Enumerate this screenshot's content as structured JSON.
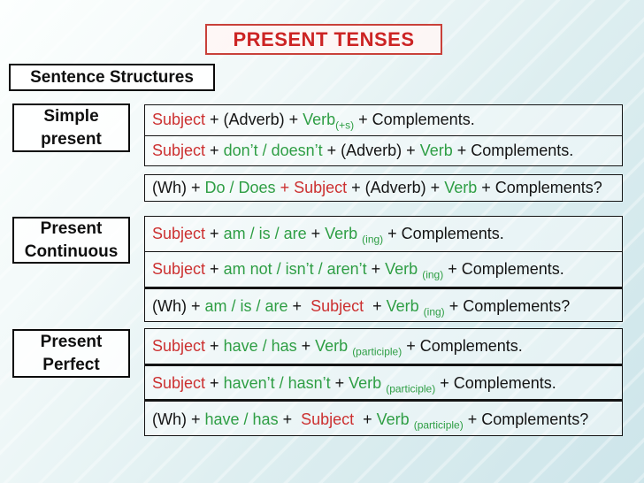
{
  "colors": {
    "red": "#cc3030",
    "green": "#2e9e44",
    "black": "#141414",
    "title_red": "#cc2424"
  },
  "title": "PRESENT TENSES",
  "subtitle": "Sentence Structures",
  "sections": [
    {
      "label": "Simple present",
      "rows": [
        {
          "segments": [
            {
              "t": "Subject",
              "c": "red"
            },
            {
              "t": " + (Adverb) + "
            },
            {
              "t": "Verb",
              "c": "green"
            },
            {
              "t": "(+s)",
              "c": "green",
              "sub": true
            },
            {
              "t": " + Complements."
            }
          ]
        },
        {
          "segments": [
            {
              "t": "Subject",
              "c": "red"
            },
            {
              "t": " + "
            },
            {
              "t": "don’t / doesn’t",
              "c": "green"
            },
            {
              "t": " + (Adverb) + "
            },
            {
              "t": "Verb",
              "c": "green"
            },
            {
              "t": " + Complements."
            }
          ]
        },
        {
          "segments": [
            {
              "t": "(Wh) + "
            },
            {
              "t": "Do / Does ",
              "c": "green"
            },
            {
              "t": "+ Subject",
              "c": "red"
            },
            {
              "t": " + (Adverb) + "
            },
            {
              "t": "Verb",
              "c": "green"
            },
            {
              "t": " + Complements?"
            }
          ]
        }
      ]
    },
    {
      "label": "Present Continuous",
      "rows": [
        {
          "segments": [
            {
              "t": "Subject",
              "c": "red"
            },
            {
              "t": " + "
            },
            {
              "t": "am / is / are",
              "c": "green"
            },
            {
              "t": " + "
            },
            {
              "t": "Verb",
              "c": "green"
            },
            {
              "t": " "
            },
            {
              "t": "(ing)",
              "c": "green",
              "sub": true
            },
            {
              "t": " + Complements."
            }
          ]
        },
        {
          "segments": [
            {
              "t": "Subject",
              "c": "red"
            },
            {
              "t": " + "
            },
            {
              "t": "am not / isn’t / aren’t",
              "c": "green"
            },
            {
              "t": " + "
            },
            {
              "t": "Verb",
              "c": "green"
            },
            {
              "t": " "
            },
            {
              "t": "(ing)",
              "c": "green",
              "sub": true
            },
            {
              "t": " + Complements."
            }
          ]
        },
        {
          "segments": [
            {
              "t": "(Wh) + "
            },
            {
              "t": "am / is / are",
              "c": "green"
            },
            {
              "t": " + "
            },
            {
              "t": " Subject ",
              "c": "red"
            },
            {
              "t": " + "
            },
            {
              "t": "Verb",
              "c": "green"
            },
            {
              "t": " "
            },
            {
              "t": "(ing)",
              "c": "green",
              "sub": true
            },
            {
              "t": " + Complements?"
            }
          ]
        }
      ]
    },
    {
      "label": "Present Perfect",
      "rows": [
        {
          "segments": [
            {
              "t": "Subject",
              "c": "red"
            },
            {
              "t": " + "
            },
            {
              "t": "have / has",
              "c": "green"
            },
            {
              "t": " + "
            },
            {
              "t": "Verb",
              "c": "green"
            },
            {
              "t": " "
            },
            {
              "t": "(participle)",
              "c": "green",
              "sub": true
            },
            {
              "t": " + Complements."
            }
          ]
        },
        {
          "segments": [
            {
              "t": "Subject",
              "c": "red"
            },
            {
              "t": " + "
            },
            {
              "t": "haven’t / hasn’t",
              "c": "green"
            },
            {
              "t": " + "
            },
            {
              "t": "Verb",
              "c": "green"
            },
            {
              "t": " "
            },
            {
              "t": "(participle)",
              "c": "green",
              "sub": true
            },
            {
              "t": " + Complements."
            }
          ]
        },
        {
          "segments": [
            {
              "t": "(Wh) + "
            },
            {
              "t": "have / has",
              "c": "green"
            },
            {
              "t": " + "
            },
            {
              "t": " Subject ",
              "c": "red"
            },
            {
              "t": " + "
            },
            {
              "t": "Verb",
              "c": "green"
            },
            {
              "t": " "
            },
            {
              "t": "(participle)",
              "c": "green",
              "sub": true
            },
            {
              "t": " + Complements?"
            }
          ]
        }
      ]
    }
  ]
}
